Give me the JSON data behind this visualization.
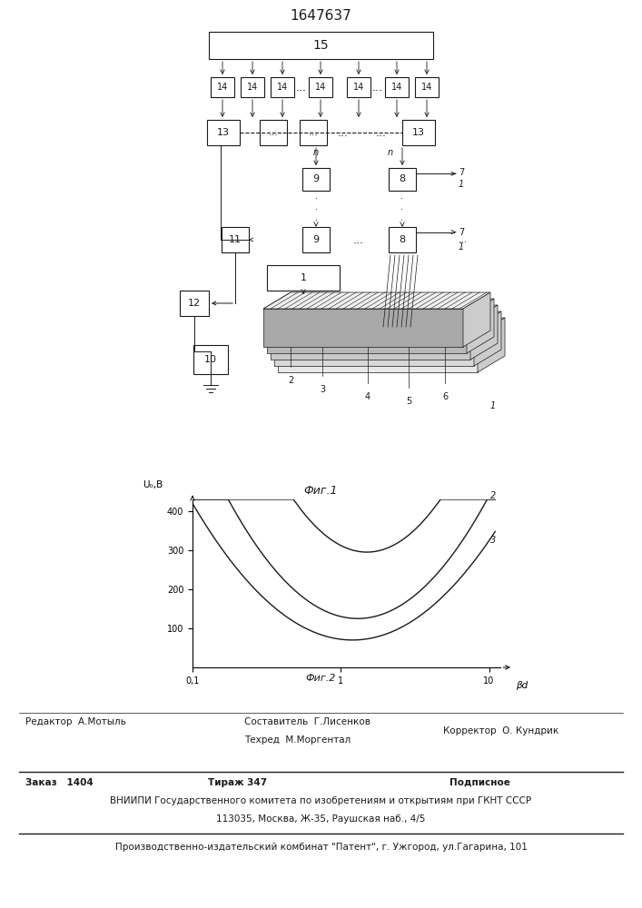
{
  "title": "1647637",
  "fig1_label": "Фиг.1",
  "fig2_label": "Фиг.2",
  "graph_xlabel": "βd",
  "graph_ylabel": "U₀,B",
  "footer_line1_left": "Редактор  А.Мотыль",
  "footer_line1_center1": "Составитель  Г.Лисенков",
  "footer_line1_center2": "Техред  М.Моргентал",
  "footer_line1_right": "Корректор  О. Кундрик",
  "footer2_col1": "Заказ   1404",
  "footer2_col2": "Тираж 347",
  "footer2_col3": "Подписное",
  "footer2_line2": "ВНИИПИ Государственного комитета по изобретениям и открытиям при ГКНТ СССР",
  "footer2_line3": "113035, Москва, Ж-35, Раушская наб., 4/5",
  "footer3": "Производственно-издательский комбинат \"Патент\", г. Ужгород, ул.Гагарина, 101",
  "lc": "#1a1a1a"
}
